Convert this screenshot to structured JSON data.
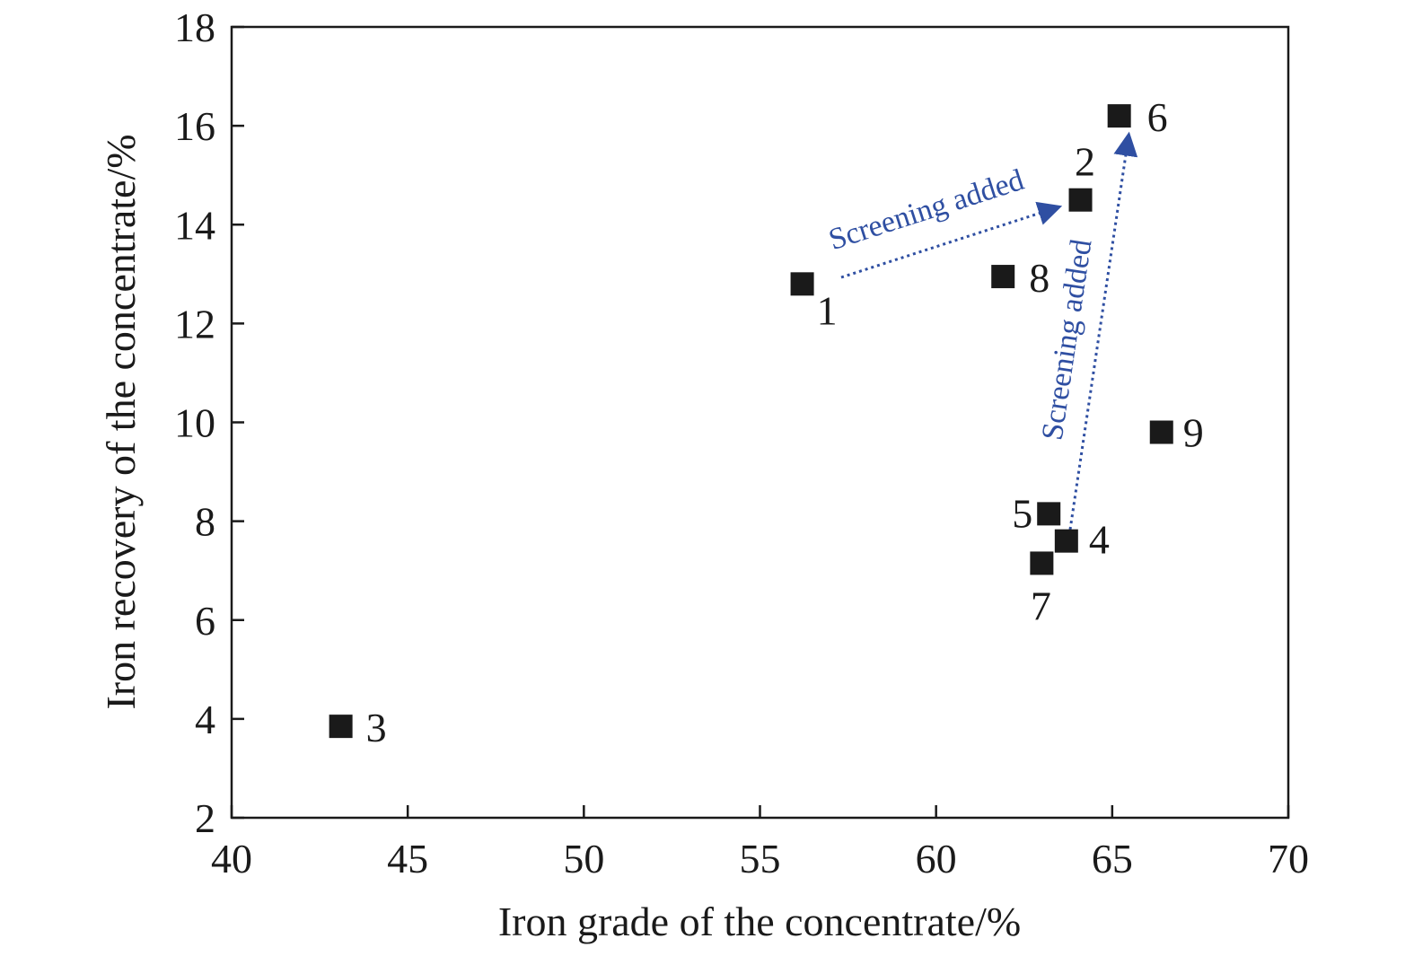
{
  "chart_data": {
    "type": "scatter",
    "title": "",
    "xlabel": "Iron grade of the concentrate/%",
    "ylabel": "Iron recovery of the concentrate/%",
    "xlim": [
      40,
      70
    ],
    "ylim": [
      2,
      18
    ],
    "xticks": [
      40,
      45,
      50,
      55,
      60,
      65,
      70
    ],
    "yticks": [
      2,
      4,
      6,
      8,
      10,
      12,
      14,
      16,
      18
    ],
    "grid": false,
    "legend": "none",
    "marker": "square",
    "marker_color": "#1a1a1a",
    "points": [
      {
        "label": "1",
        "x": 56.2,
        "y": 12.8
      },
      {
        "label": "2",
        "x": 64.1,
        "y": 14.5
      },
      {
        "label": "3",
        "x": 43.1,
        "y": 3.85
      },
      {
        "label": "4",
        "x": 63.7,
        "y": 7.6
      },
      {
        "label": "5",
        "x": 63.2,
        "y": 8.15
      },
      {
        "label": "6",
        "x": 65.2,
        "y": 16.2
      },
      {
        "label": "7",
        "x": 63.0,
        "y": 7.15
      },
      {
        "label": "8",
        "x": 61.9,
        "y": 12.95
      },
      {
        "label": "9",
        "x": 66.4,
        "y": 9.8
      }
    ],
    "annotations": [
      {
        "text": "Screening added",
        "from_point": "1",
        "to_point": "2",
        "color": "#2f4fa2"
      },
      {
        "text": "Screening added",
        "from_point": "4",
        "to_point": "6",
        "color": "#2f4fa2"
      }
    ]
  }
}
